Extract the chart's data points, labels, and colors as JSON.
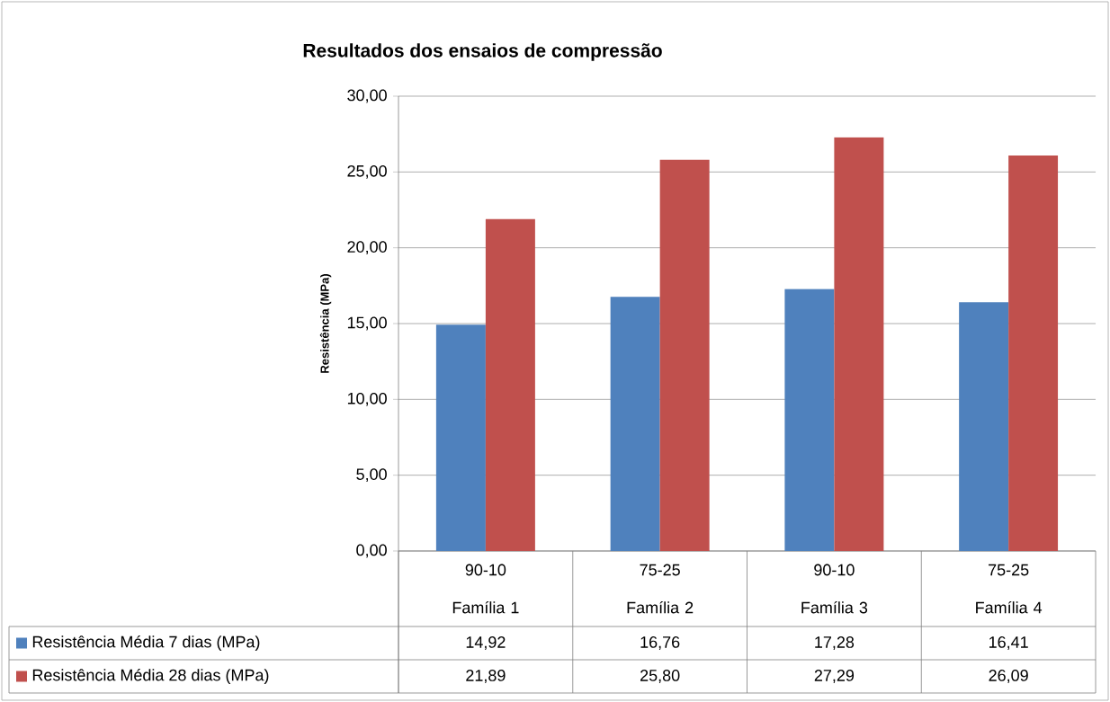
{
  "chart_data": {
    "type": "bar",
    "title": "Resultados dos ensaios de compressão",
    "ylabel": "Resistência (MPa)",
    "categories": [
      "90-10 Família 1",
      "75-25 Família 2",
      "90-10 Família 3",
      "75-25 Família 4"
    ],
    "series": [
      {
        "name": "Resistência Média 7 dias (MPa)",
        "color": "#4f81bd",
        "values": [
          14.92,
          16.76,
          17.28,
          16.41
        ],
        "value_labels": [
          "14,92",
          "16,76",
          "17,28",
          "16,41"
        ]
      },
      {
        "name": "Resistência Média 28 dias (MPa)",
        "color": "#c0504d",
        "values": [
          21.89,
          25.8,
          27.29,
          26.09
        ],
        "value_labels": [
          "21,89",
          "25,80",
          "27,29",
          "26,09"
        ]
      }
    ],
    "ylim": [
      0,
      30
    ],
    "yticks": [
      {
        "value": 0,
        "label": "0,00"
      },
      {
        "value": 5,
        "label": "5,00"
      },
      {
        "value": 10,
        "label": "10,00"
      },
      {
        "value": 15,
        "label": "15,00"
      },
      {
        "value": 20,
        "label": "20,00"
      },
      {
        "value": 25,
        "label": "25,00"
      },
      {
        "value": 30,
        "label": "30,00"
      }
    ],
    "grid": "y",
    "legend": "bottom"
  }
}
